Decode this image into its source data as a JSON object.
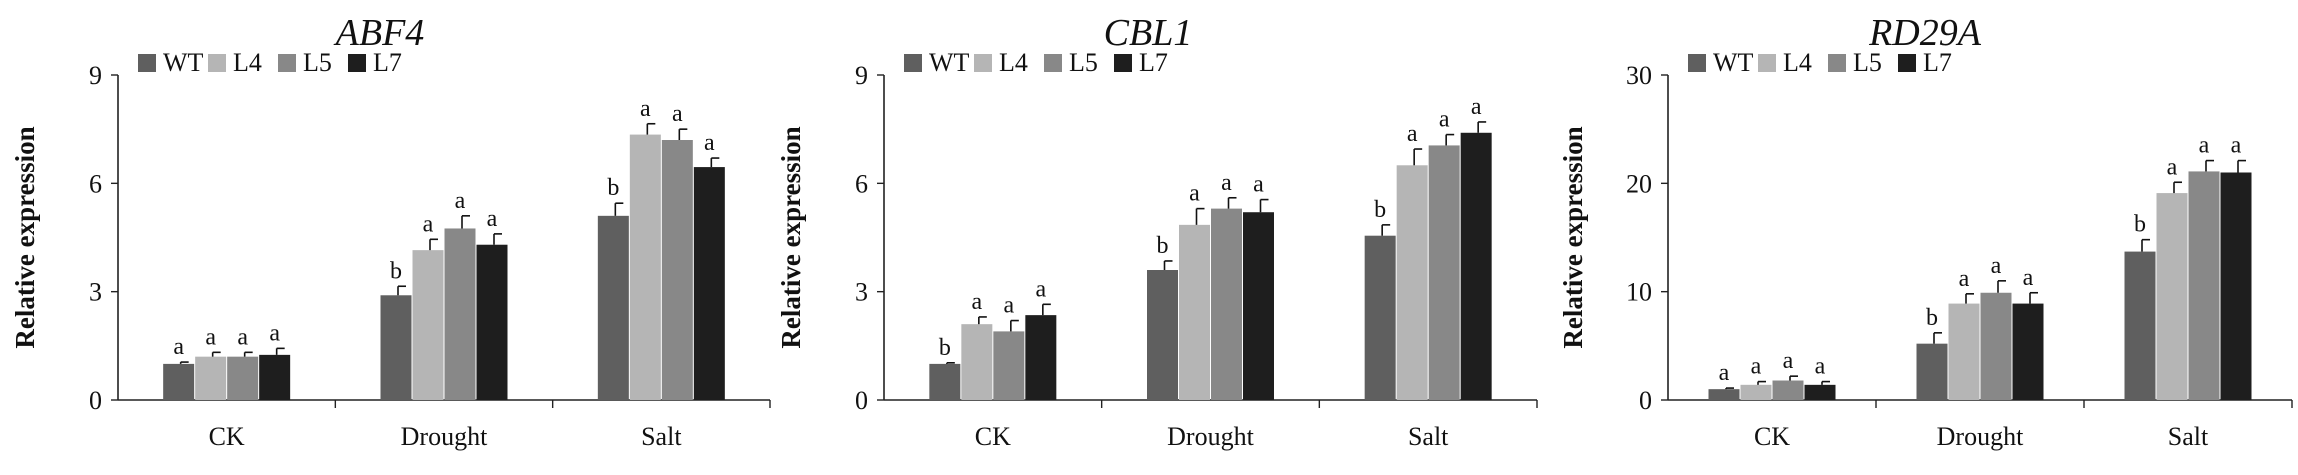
{
  "chart_data": [
    {
      "type": "bar",
      "title": "ABF4",
      "ylabel": "Relative expression",
      "xlabel": "",
      "ylim": [
        0,
        9
      ],
      "yticks": [
        "0",
        "3",
        "6",
        "9"
      ],
      "categories": [
        "CK",
        "Drought",
        "Salt"
      ],
      "series": [
        {
          "name": "WT",
          "color": "#5f5f5f",
          "values": [
            1.0,
            2.9,
            5.1
          ],
          "errors": [
            0.05,
            0.25,
            0.35
          ],
          "sig": [
            "a",
            "b",
            "b"
          ]
        },
        {
          "name": "L4",
          "color": "#b5b5b5",
          "values": [
            1.2,
            4.15,
            7.35
          ],
          "errors": [
            0.12,
            0.3,
            0.3
          ],
          "sig": [
            "a",
            "a",
            "a"
          ]
        },
        {
          "name": "L5",
          "color": "#888888",
          "values": [
            1.2,
            4.75,
            7.2
          ],
          "errors": [
            0.12,
            0.35,
            0.3
          ],
          "sig": [
            "a",
            "a",
            "a"
          ]
        },
        {
          "name": "L7",
          "color": "#1e1e1e",
          "values": [
            1.25,
            4.3,
            6.45
          ],
          "errors": [
            0.18,
            0.3,
            0.25
          ],
          "sig": [
            "a",
            "a",
            "a"
          ]
        }
      ]
    },
    {
      "type": "bar",
      "title": "CBL1",
      "ylabel": "Relative expression",
      "xlabel": "",
      "ylim": [
        0,
        9
      ],
      "yticks": [
        "0",
        "3",
        "6",
        "9"
      ],
      "categories": [
        "CK",
        "Drought",
        "Salt"
      ],
      "series": [
        {
          "name": "WT",
          "color": "#5f5f5f",
          "values": [
            1.0,
            3.6,
            4.55
          ],
          "errors": [
            0.03,
            0.25,
            0.3
          ],
          "sig": [
            "b",
            "b",
            "b"
          ]
        },
        {
          "name": "L4",
          "color": "#b5b5b5",
          "values": [
            2.1,
            4.85,
            6.5
          ],
          "errors": [
            0.2,
            0.45,
            0.45
          ],
          "sig": [
            "a",
            "a",
            "a"
          ]
        },
        {
          "name": "L5",
          "color": "#888888",
          "values": [
            1.9,
            5.3,
            7.05
          ],
          "errors": [
            0.3,
            0.3,
            0.3
          ],
          "sig": [
            "a",
            "a",
            "a"
          ]
        },
        {
          "name": "L7",
          "color": "#1e1e1e",
          "values": [
            2.35,
            5.2,
            7.4
          ],
          "errors": [
            0.3,
            0.35,
            0.3
          ],
          "sig": [
            "a",
            "a",
            "a"
          ]
        }
      ]
    },
    {
      "type": "bar",
      "title": "RD29A",
      "ylabel": "Relative expression",
      "xlabel": "",
      "ylim": [
        0,
        30
      ],
      "yticks": [
        "0",
        "10",
        "20",
        "30"
      ],
      "categories": [
        "CK",
        "Drought",
        "Salt"
      ],
      "series": [
        {
          "name": "WT",
          "color": "#5f5f5f",
          "values": [
            1.0,
            5.2,
            13.7
          ],
          "errors": [
            0.1,
            1.0,
            1.1
          ],
          "sig": [
            "a",
            "b",
            "b"
          ]
        },
        {
          "name": "L4",
          "color": "#b5b5b5",
          "values": [
            1.4,
            8.9,
            19.1
          ],
          "errors": [
            0.3,
            0.9,
            1.0
          ],
          "sig": [
            "a",
            "a",
            "a"
          ]
        },
        {
          "name": "L5",
          "color": "#888888",
          "values": [
            1.8,
            9.9,
            21.1
          ],
          "errors": [
            0.4,
            1.1,
            1.0
          ],
          "sig": [
            "a",
            "a",
            "a"
          ]
        },
        {
          "name": "L7",
          "color": "#1e1e1e",
          "values": [
            1.4,
            8.9,
            21.0
          ],
          "errors": [
            0.3,
            1.0,
            1.1
          ],
          "sig": [
            "a",
            "a",
            "a"
          ]
        }
      ]
    }
  ]
}
